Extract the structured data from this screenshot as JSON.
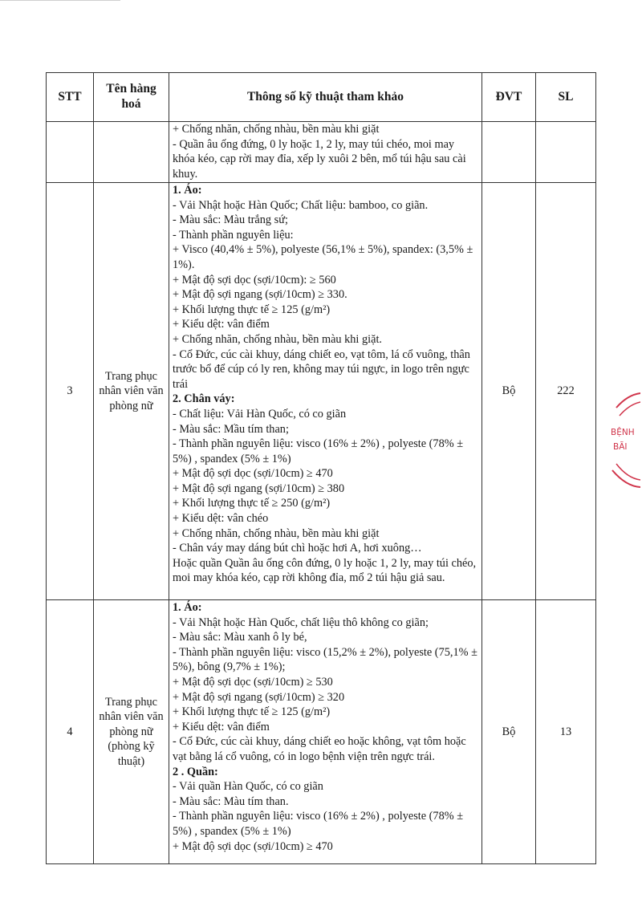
{
  "table": {
    "headers": {
      "stt": "STT",
      "name": "Tên hàng hoá",
      "spec": "Thông số kỹ thuật tham khảo",
      "unit": "ĐVT",
      "qty": "SL"
    },
    "rows": [
      {
        "stt": "",
        "name": "",
        "unit": "",
        "qty": "",
        "spec": [
          {
            "t": "+ Chống nhăn, chống nhàu, bền màu khi giặt",
            "b": false
          },
          {
            "t": "- Quần âu ống đứng, 0 ly hoặc 1, 2 ly, may túi chéo, moi may khóa kéo, cạp rời may đỉa, xếp ly xuôi 2 bên, mổ túi hậu sau cài khuy.",
            "b": false
          }
        ]
      },
      {
        "stt": "3",
        "name": "Trang phục nhân viên văn phòng nữ",
        "unit": "Bộ",
        "qty": "222",
        "spec": [
          {
            "t": "1. Áo:",
            "b": true
          },
          {
            "t": "- Vải Nhật hoặc Hàn Quốc; Chất liệu: bamboo, co giãn.",
            "b": false
          },
          {
            "t": "- Màu sắc: Màu trắng sứ;",
            "b": false
          },
          {
            "t": "- Thành phần nguyên liệu:",
            "b": false
          },
          {
            "t": "+ Visco (40,4% ± 5%), polyeste (56,1% ± 5%), spandex: (3,5% ± 1%).",
            "b": false
          },
          {
            "t": "+ Mật độ sợi dọc (sợi/10cm): ≥ 560",
            "b": false
          },
          {
            "t": "+ Mật độ sợi ngang (sợi/10cm) ≥ 330.",
            "b": false
          },
          {
            "t": "+ Khối lượng thực tế ≥ 125 (g/m²)",
            "b": false
          },
          {
            "t": "+ Kiểu dệt: vân điểm",
            "b": false
          },
          {
            "t": "+ Chống nhăn, chống nhàu, bền màu khi giặt.",
            "b": false
          },
          {
            "t": "- Cổ Đức, cúc cài khuy, dáng chiết eo, vạt tôm, lá cổ vuông, thân trước bổ để cúp có ly ren, không may túi ngực, in logo trên ngực trái",
            "b": false
          },
          {
            "t": "2. Chân váy:",
            "b": true
          },
          {
            "t": "- Chất liệu: Vải Hàn Quốc, có co giãn",
            "b": false
          },
          {
            "t": "- Màu sắc: Mầu tím than;",
            "b": false
          },
          {
            "t": "- Thành phần nguyên liệu: visco (16% ± 2%) , polyeste (78%  ± 5%) , spandex (5% ± 1%)",
            "b": false
          },
          {
            "t": "+ Mật độ sợi dọc (sợi/10cm) ≥ 470",
            "b": false
          },
          {
            "t": "+ Mật độ sợi ngang (sợi/10cm) ≥ 380",
            "b": false
          },
          {
            "t": "+ Khối lượng thực tế ≥ 250 (g/m²)",
            "b": false
          },
          {
            "t": "+ Kiểu dệt: vân chéo",
            "b": false
          },
          {
            "t": "+ Chống nhăn, chống nhàu, bền màu khi giặt",
            "b": false
          },
          {
            "t": "- Chân váy may dáng bút chì hoặc hơi A, hơi xuông…",
            "b": false
          },
          {
            "t": "Hoặc quần Quần âu ống côn đứng, 0 ly hoặc 1, 2 ly, may túi chéo, moi may khóa kéo, cạp rời không đỉa,  mổ 2 túi hậu giả sau.",
            "b": false
          }
        ]
      },
      {
        "stt": "4",
        "name": "Trang phục nhân viên văn phòng nữ (phòng kỹ thuật)",
        "unit": "Bộ",
        "qty": "13",
        "spec": [
          {
            "t": "1. Áo:",
            "b": true
          },
          {
            "t": "- Vải Nhật hoặc Hàn Quốc, chất liệu thô không co giãn;",
            "b": false
          },
          {
            "t": "- Màu sắc: Màu xanh ô ly bé,",
            "b": false
          },
          {
            "t": "- Thành phần nguyên liệu: visco (15,2% ± 2%),  polyeste (75,1% ± 5%), bông (9,7% ± 1%);",
            "b": false
          },
          {
            "t": "+ Mật độ sợi dọc (sợi/10cm) ≥ 530",
            "b": false
          },
          {
            "t": "+ Mật độ sợi ngang (sợi/10cm) ≥ 320",
            "b": false
          },
          {
            "t": "+ Khối lượng thực tế ≥ 125 (g/m²)",
            "b": false
          },
          {
            "t": "+ Kiểu dệt: vân điểm",
            "b": false
          },
          {
            "t": "- Cổ Đức, cúc cài khuy, dáng chiết eo hoặc không, vạt tôm hoặc vạt bằng lá cổ vuông, có in logo bệnh viện trên ngực trái.",
            "b": false
          },
          {
            "t": "2 . Quần:",
            "b": true
          },
          {
            "t": "- Vải quần Hàn Quốc, có co giãn",
            "b": false
          },
          {
            "t": "- Màu sắc: Màu tím than.",
            "b": false
          },
          {
            "t": "- Thành phần nguyên liệu: visco (16% ± 2%) , polyeste (78%  ± 5%) , spandex (5% ± 1%)",
            "b": false
          },
          {
            "t": "+ Mật độ sợi dọc (sợi/10cm) ≥ 470",
            "b": false
          }
        ]
      }
    ]
  },
  "stamp": {
    "line1": "BỆNH",
    "line2": "BÃI",
    "color": "#d0344a"
  }
}
